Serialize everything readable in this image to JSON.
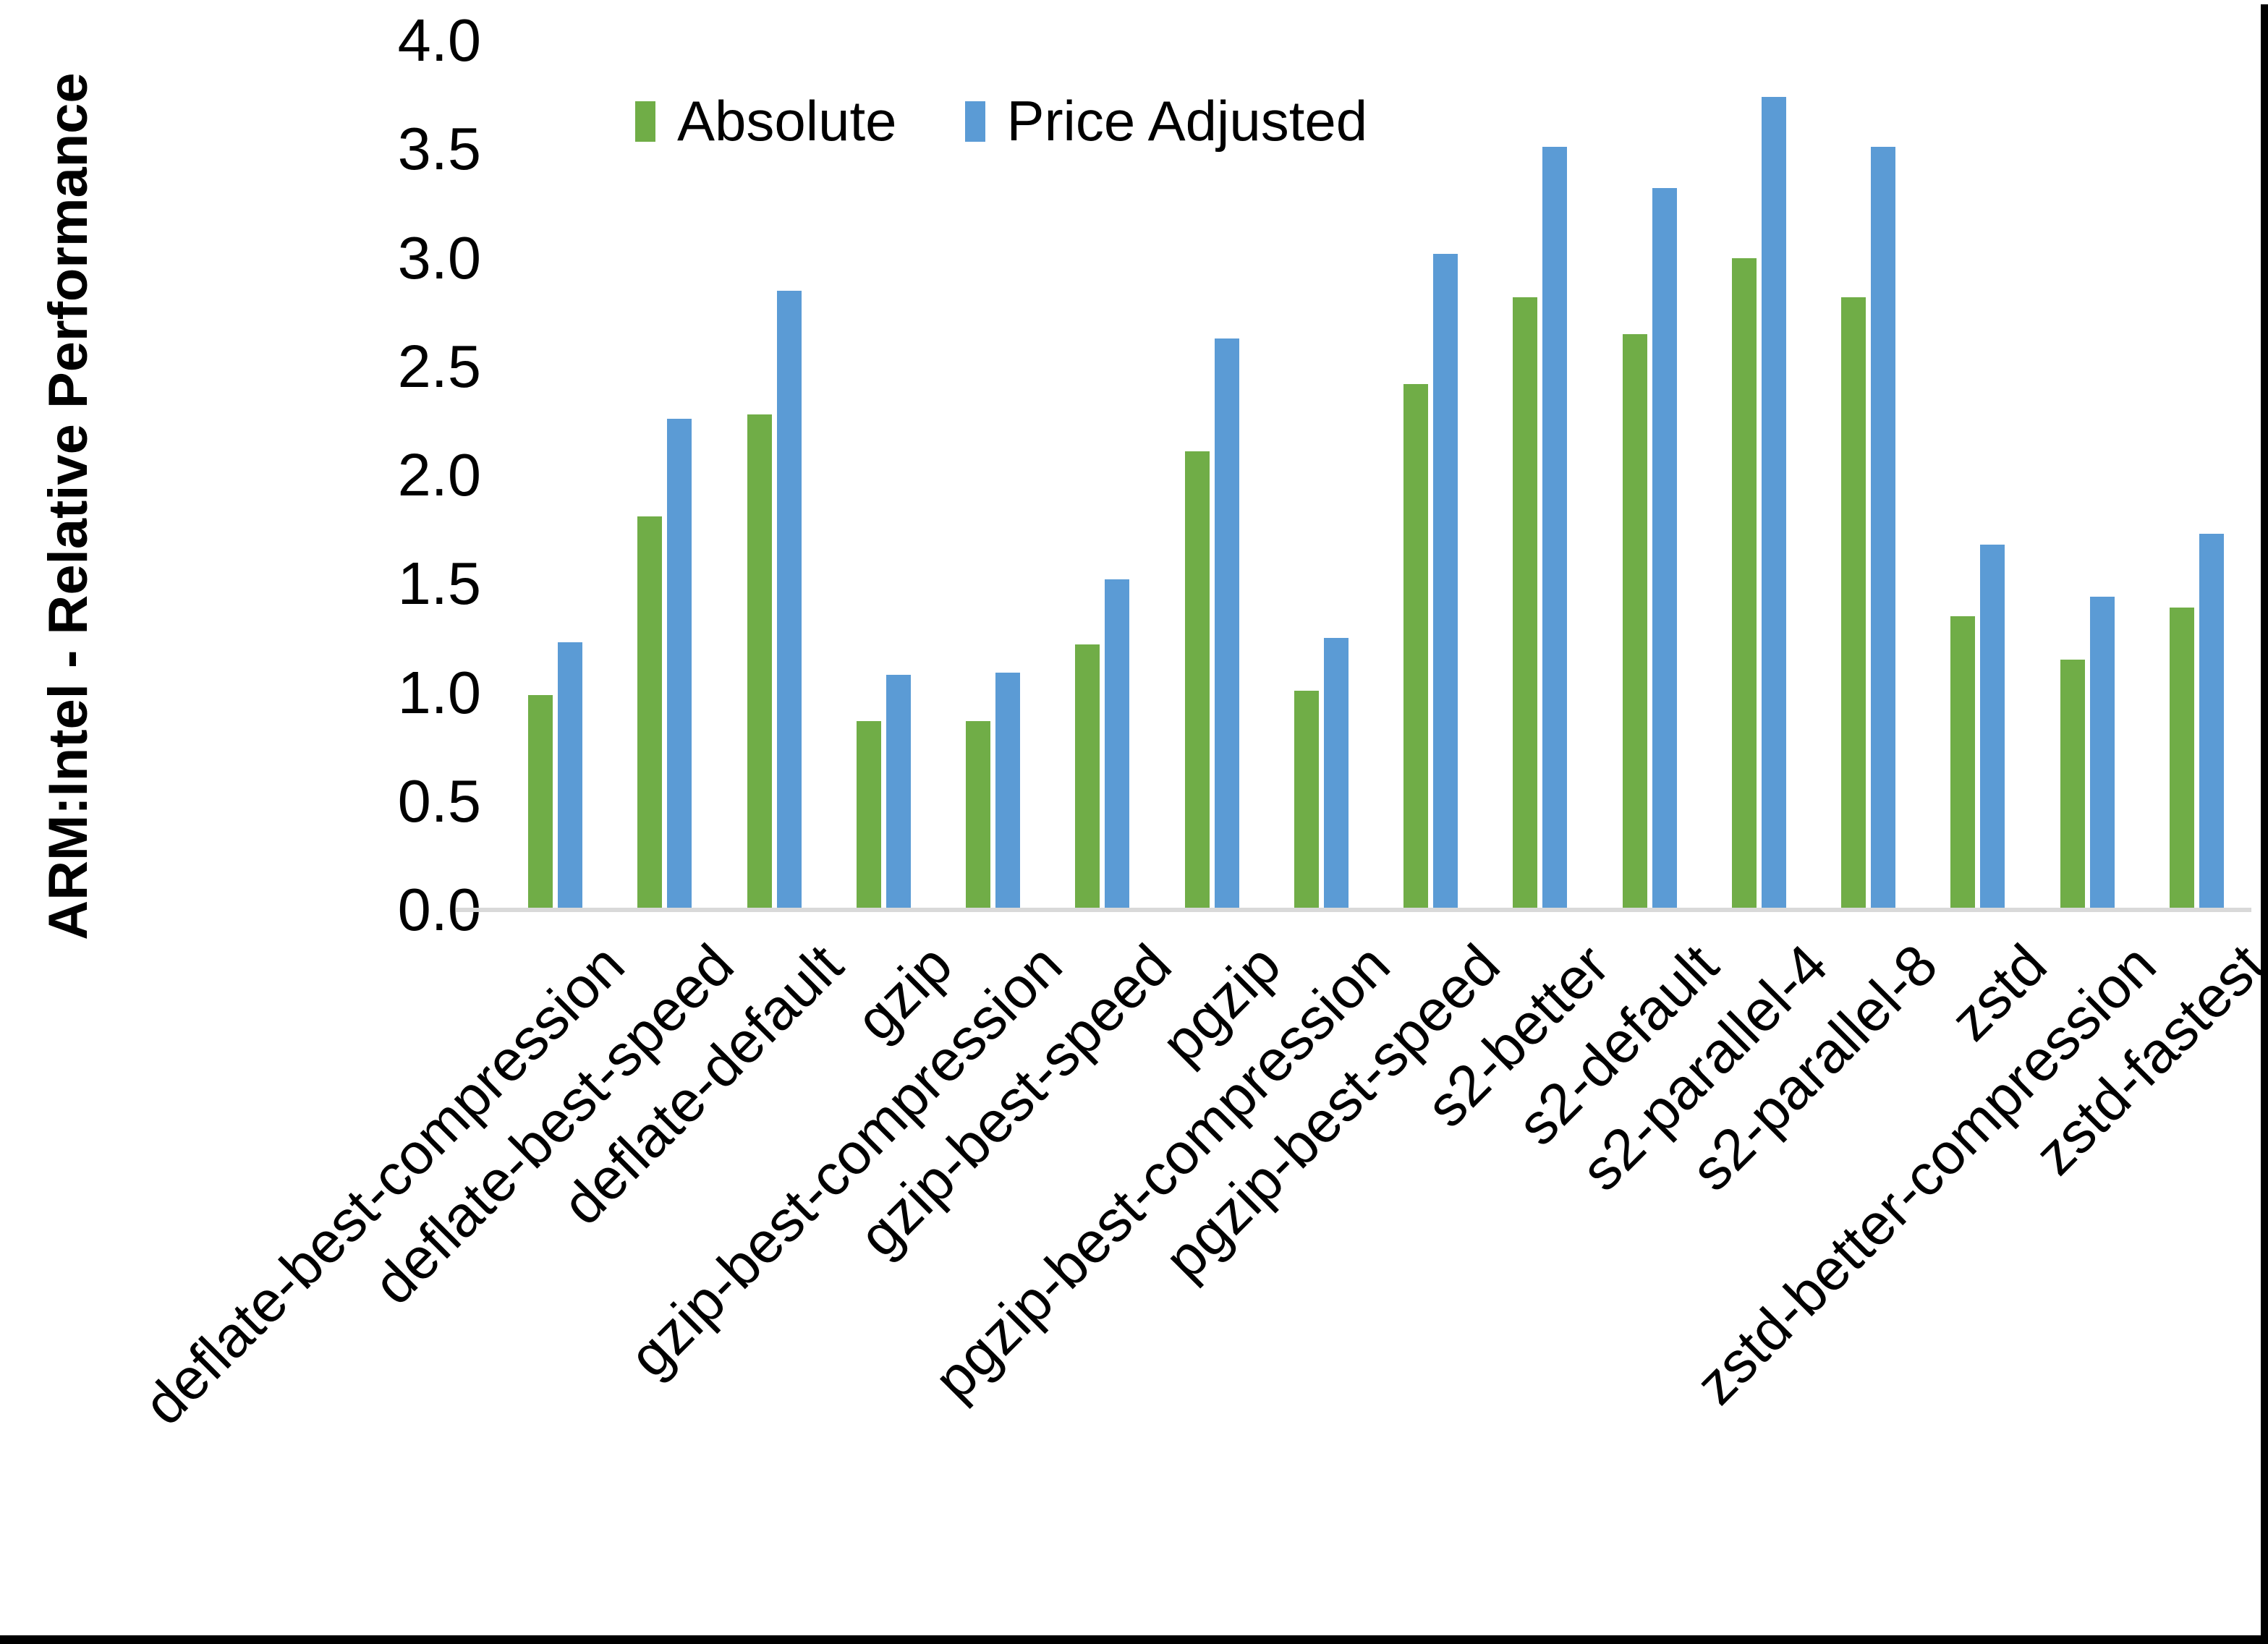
{
  "chart_data": {
    "type": "bar",
    "title": "",
    "xlabel": "",
    "ylabel": "ARM:Intel - Relative Performance",
    "ylim": [
      0.0,
      4.0
    ],
    "ytick_step": 0.5,
    "ytick_labels": [
      "0.0",
      "0.5",
      "1.0",
      "1.5",
      "2.0",
      "2.5",
      "3.0",
      "3.5",
      "4.0"
    ],
    "grid": false,
    "legend_position": "top-center",
    "categories": [
      "deflate-best-compression",
      "deflate-best-speed",
      "deflate-default",
      "gzip",
      "gzip-best-compression",
      "gzip-best-speed",
      "pgzip",
      "pgzip-best-compression",
      "pgzip-best-speed",
      "s2-better",
      "s2-default",
      "s2-parallel-4",
      "s2-parallel-8",
      "zstd",
      "zstd-better-compression",
      "zstd-fastest"
    ],
    "series": [
      {
        "name": "Absolute",
        "color": "#70AD47",
        "values": [
          0.99,
          1.81,
          2.28,
          0.87,
          0.87,
          1.22,
          2.11,
          1.01,
          2.42,
          2.82,
          2.65,
          3.0,
          2.82,
          1.35,
          1.15,
          1.39
        ]
      },
      {
        "name": "Price Adjusted",
        "color": "#5B9BD5",
        "values": [
          1.23,
          2.26,
          2.85,
          1.08,
          1.09,
          1.52,
          2.63,
          1.25,
          3.02,
          3.51,
          3.32,
          3.74,
          3.51,
          1.68,
          1.44,
          1.73
        ]
      }
    ]
  },
  "colors": {
    "background": "#FFFFFF",
    "axis_line": "#D9D9D9",
    "text": "#000000",
    "frame_border": "#000000"
  }
}
